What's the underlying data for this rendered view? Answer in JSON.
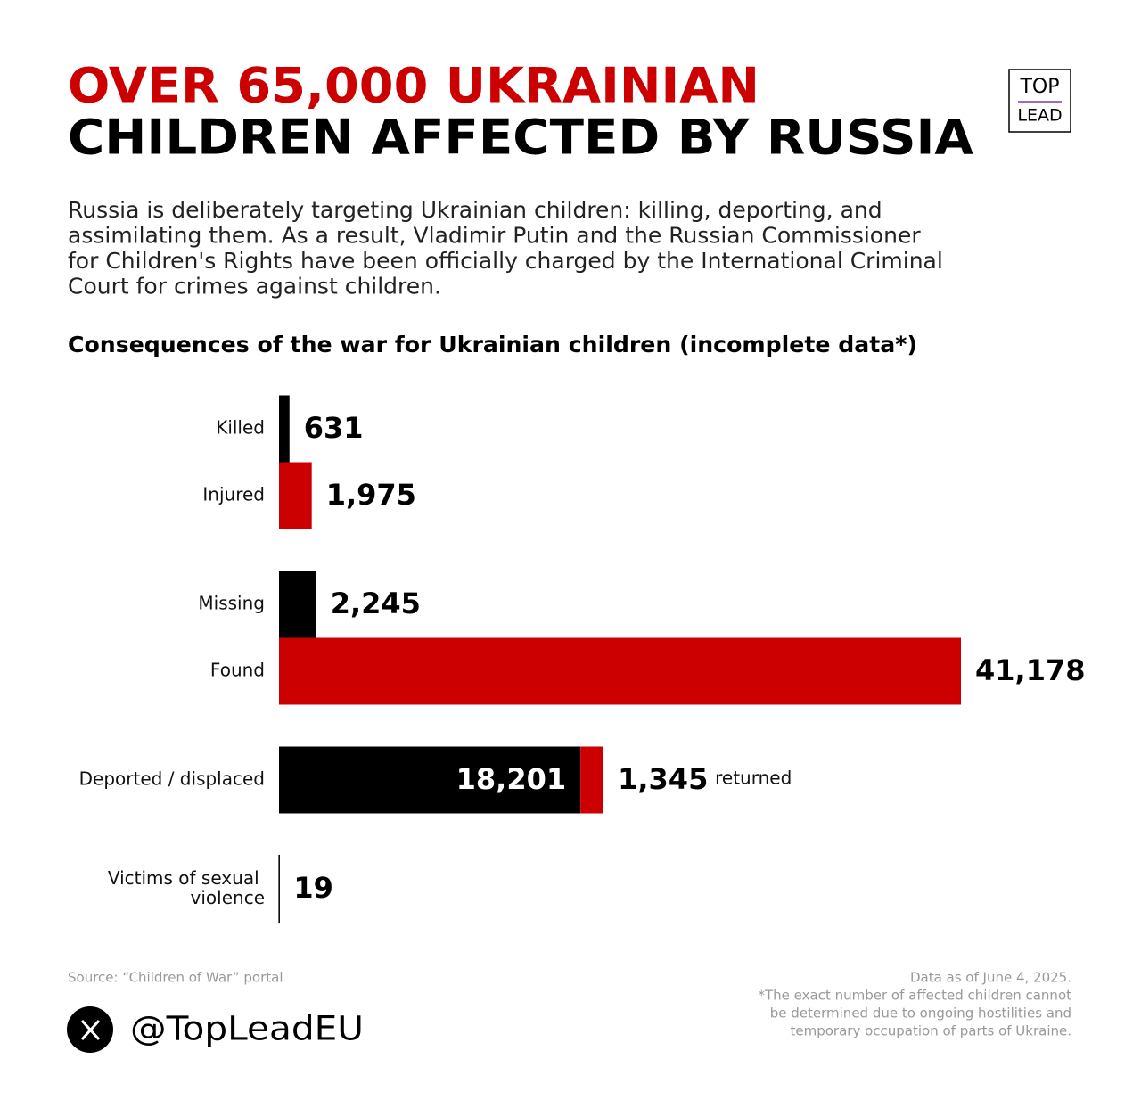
{
  "header": {
    "title_line1": "OVER 65,000 UKRAINIAN",
    "title_line2": "CHILDREN AFFECTED BY RUSSIA",
    "logo_top": "TOP",
    "logo_bottom": "LEAD",
    "description": [
      "Russia is deliberately targeting Ukrainian children: killing, deporting, and",
      "assimilating them. As a result, Vladimir Putin and the Russian Commissioner",
      "for Children's Rights have been officially charged by the International Criminal",
      "Court for crimes against children."
    ]
  },
  "chart_data": {
    "type": "bar",
    "orientation": "horizontal",
    "title": "Consequences of the war for Ukrainian children (incomplete data*)",
    "categories": [
      "Killed",
      "Injured",
      "Missing",
      "Found",
      "Deported / displaced",
      "Victims of sexual violence"
    ],
    "series": [
      {
        "colors": [
          "#000000",
          "#cc0000",
          "#000000",
          "#cc0000",
          "#000000",
          "#000000"
        ],
        "values": [
          631,
          1975,
          2245,
          41178,
          18201,
          19
        ],
        "value_labels": [
          "631",
          "1,975",
          "2,245",
          "41,178",
          "18,201",
          "19"
        ]
      },
      {
        "name": "returned",
        "color": "#cc0000",
        "values": [
          null,
          null,
          null,
          null,
          1345,
          null
        ],
        "value_labels": [
          null,
          null,
          null,
          null,
          "1,345",
          null
        ]
      }
    ]
  },
  "footer": {
    "source": "Source: “Children of War” portal",
    "handle": "@TopLeadEU",
    "notes": [
      "Data as of June 4, 2025.",
      "*The exact number of affected children cannot",
      "be determined due to ongoing hostilities and",
      "temporary occupation of parts of Ukraine."
    ]
  }
}
